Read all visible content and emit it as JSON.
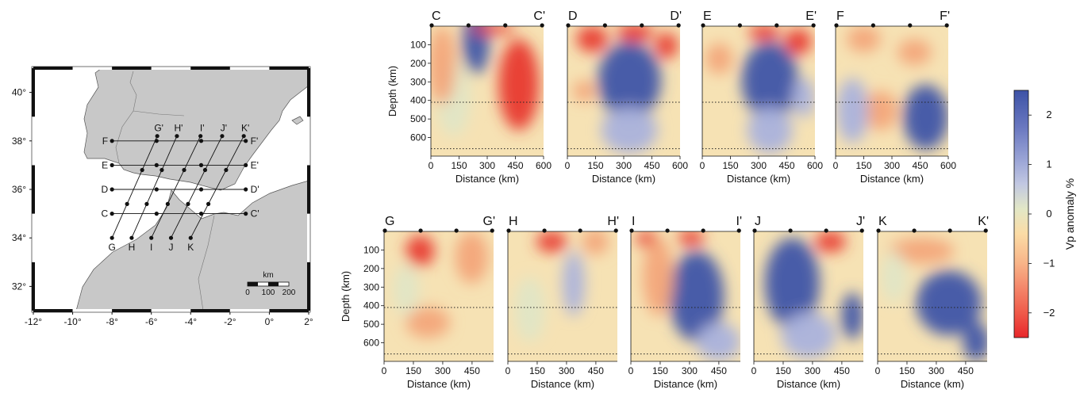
{
  "map": {
    "lon_ticks": [
      "-12°",
      "-10°",
      "-8°",
      "-6°",
      "-4°",
      "-2°",
      "0°",
      "2°"
    ],
    "lat_ticks": [
      "40°",
      "38°",
      "36°",
      "34°",
      "32°"
    ],
    "scale_unit": "km",
    "scale_ticks": [
      "0",
      "100",
      "200"
    ],
    "profiles": [
      {
        "id": "F",
        "start_label": "F",
        "end_label": "F'",
        "start": [
          -8.0,
          38.0
        ],
        "end": [
          -1.2,
          38.0
        ]
      },
      {
        "id": "E",
        "start_label": "E",
        "end_label": "E'",
        "start": [
          -8.0,
          37.0
        ],
        "end": [
          -1.2,
          37.0
        ]
      },
      {
        "id": "D",
        "start_label": "D",
        "end_label": "D'",
        "start": [
          -8.0,
          36.0
        ],
        "end": [
          -1.2,
          36.0
        ]
      },
      {
        "id": "C",
        "start_label": "C",
        "end_label": "C'",
        "start": [
          -8.0,
          35.0
        ],
        "end": [
          -1.2,
          35.0
        ]
      },
      {
        "id": "G",
        "start_label": "G",
        "end_label": "G'",
        "start": [
          -8.0,
          34.0
        ],
        "end": [
          -5.7,
          38.2
        ]
      },
      {
        "id": "H",
        "start_label": "H",
        "end_label": "H'",
        "start": [
          -7.0,
          34.0
        ],
        "end": [
          -4.7,
          38.2
        ]
      },
      {
        "id": "I",
        "start_label": "I",
        "end_label": "I'",
        "start": [
          -6.0,
          34.0
        ],
        "end": [
          -3.5,
          38.2
        ]
      },
      {
        "id": "J",
        "start_label": "J",
        "end_label": "J'",
        "start": [
          -5.0,
          34.0
        ],
        "end": [
          -2.4,
          38.2
        ]
      },
      {
        "id": "K",
        "start_label": "K",
        "end_label": "K'",
        "start": [
          -4.0,
          34.0
        ],
        "end": [
          -1.3,
          38.2
        ]
      }
    ]
  },
  "sections": {
    "depth_label": "Depth (km)",
    "distance_label": "Distance (km)",
    "depth_ticks": [
      "100",
      "200",
      "300",
      "400",
      "500",
      "600"
    ],
    "top_row_distance_ticks": [
      "0",
      "150",
      "300",
      "450",
      "600"
    ],
    "bottom_row_distance_ticks": [
      "0",
      "150",
      "300",
      "450"
    ],
    "discontinuities_km": [
      410,
      660
    ],
    "top_row": [
      {
        "id": "C",
        "left_label": "C",
        "right_label": "C'"
      },
      {
        "id": "D",
        "left_label": "D",
        "right_label": "D'"
      },
      {
        "id": "E",
        "left_label": "E",
        "right_label": "E'"
      },
      {
        "id": "F",
        "left_label": "F",
        "right_label": "F'"
      }
    ],
    "bottom_row": [
      {
        "id": "G",
        "left_label": "G",
        "right_label": "G'"
      },
      {
        "id": "H",
        "left_label": "H",
        "right_label": "H'"
      },
      {
        "id": "I",
        "left_label": "I",
        "right_label": "I'"
      },
      {
        "id": "J",
        "left_label": "J",
        "right_label": "J'"
      },
      {
        "id": "K",
        "left_label": "K",
        "right_label": "K'"
      }
    ]
  },
  "colorbar": {
    "label": "Vp anomaly %",
    "ticks": [
      "2",
      "1",
      "0",
      "−1",
      "−2"
    ],
    "range": [
      -2.5,
      2.5
    ],
    "colors": [
      "#e8262a",
      "#ef5a4a",
      "#f4866a",
      "#f8b488",
      "#fbdca6",
      "#e2e7c6",
      "#c2c8e2",
      "#9aa4d6",
      "#6a78c0",
      "#3d52a6"
    ]
  }
}
